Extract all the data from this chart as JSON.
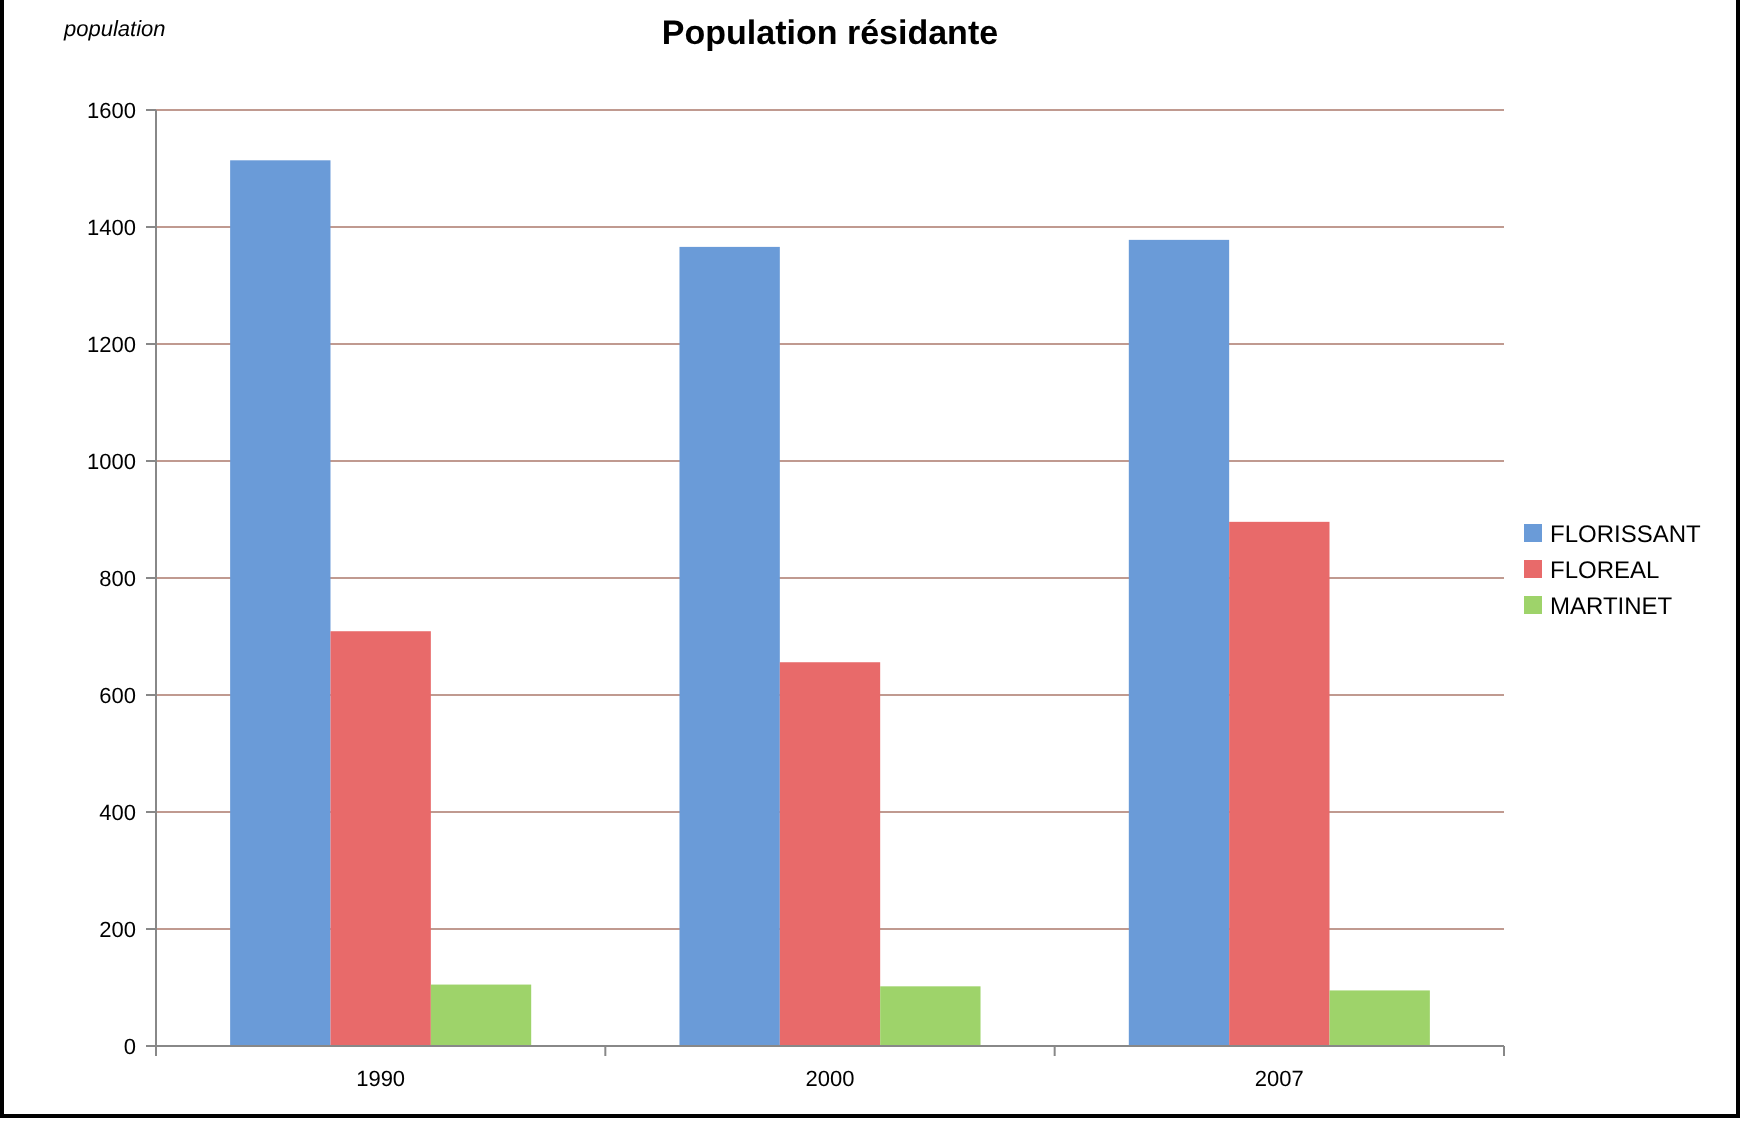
{
  "chart_data": {
    "type": "bar",
    "title": "Population résidante",
    "ylabel": "population",
    "categories": [
      "1990",
      "2000",
      "2007"
    ],
    "series": [
      {
        "name": "FLORISSANT",
        "color": "#6a9bd8",
        "values": [
          1514,
          1366,
          1378
        ]
      },
      {
        "name": "FLOREAL",
        "color": "#e86a6a",
        "values": [
          709,
          656,
          896
        ]
      },
      {
        "name": "MARTINET",
        "color": "#9ed36a",
        "values": [
          105,
          102,
          95
        ]
      }
    ],
    "ylim": [
      0,
      1600
    ],
    "yticks": [
      0,
      200,
      400,
      600,
      800,
      1000,
      1200,
      1400,
      1600
    ],
    "grid": "y",
    "legend": "right"
  }
}
